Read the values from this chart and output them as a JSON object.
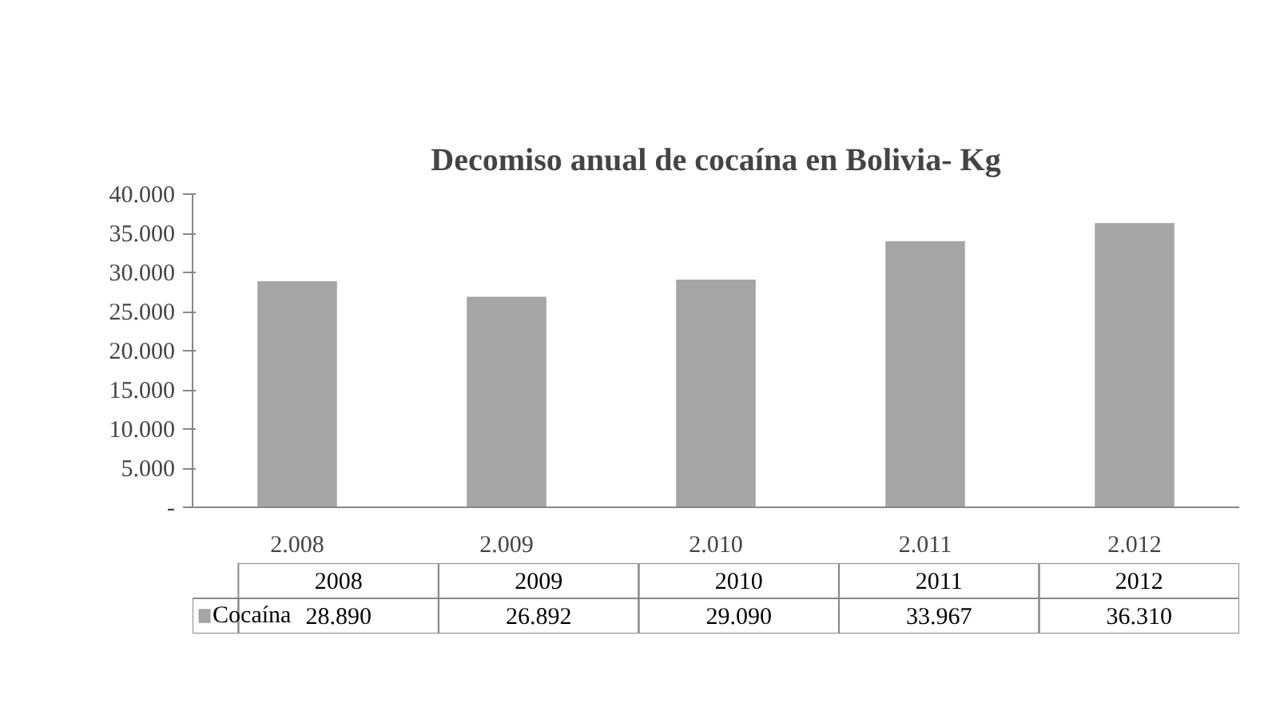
{
  "chart_data": {
    "type": "bar",
    "title": "Decomiso anual de cocaína en Bolivia- Kg",
    "categories": [
      "2.008",
      "2.009",
      "2.010",
      "2.011",
      "2.012"
    ],
    "series": [
      {
        "name": "Cocaína",
        "color": "#a5a5a5",
        "values": [
          28890,
          26892,
          29090,
          33967,
          36310
        ],
        "value_labels": [
          "28.890",
          "26.892",
          "29.090",
          "33.967",
          "36.310"
        ]
      }
    ],
    "annotations": [
      "2008",
      "2009",
      "2010",
      "2011",
      "2012"
    ],
    "ylim": [
      0,
      40000
    ],
    "yticks": [
      {
        "value": 0,
        "label": "-"
      },
      {
        "value": 5000,
        "label": "5.000"
      },
      {
        "value": 10000,
        "label": "10.000"
      },
      {
        "value": 15000,
        "label": "15.000"
      },
      {
        "value": 20000,
        "label": "20.000"
      },
      {
        "value": 25000,
        "label": "25.000"
      },
      {
        "value": 30000,
        "label": "30.000"
      },
      {
        "value": 35000,
        "label": "35.000"
      },
      {
        "value": 40000,
        "label": "40.000"
      }
    ],
    "grid": false,
    "legend": "bottom"
  }
}
